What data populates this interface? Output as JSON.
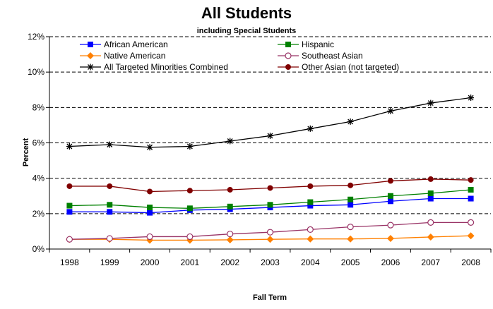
{
  "chart_data": {
    "type": "line",
    "title": "All Students",
    "subtitle": "including Special Students",
    "xlabel": "Fall Term",
    "ylabel": "Percent",
    "x": [
      "1998",
      "1999",
      "2000",
      "2001",
      "2002",
      "2003",
      "2004",
      "2005",
      "2006",
      "2007",
      "2008"
    ],
    "ylim": [
      0,
      12
    ],
    "yticks": [
      "0%",
      "2%",
      "4%",
      "6%",
      "8%",
      "10%",
      "12%"
    ],
    "grid": "horizontal dashed",
    "legend_position": "top",
    "series": [
      {
        "name": "African American",
        "color": "#0000ff",
        "marker": "square-filled",
        "values": [
          2.1,
          2.1,
          2.05,
          2.2,
          2.25,
          2.35,
          2.45,
          2.5,
          2.7,
          2.85,
          2.85
        ]
      },
      {
        "name": "Hispanic",
        "color": "#008000",
        "marker": "square-filled",
        "values": [
          2.45,
          2.5,
          2.35,
          2.3,
          2.4,
          2.5,
          2.65,
          2.8,
          3.0,
          3.15,
          3.35
        ]
      },
      {
        "name": "Native American",
        "color": "#ff8000",
        "marker": "diamond-filled",
        "values": [
          0.55,
          0.55,
          0.5,
          0.5,
          0.52,
          0.55,
          0.57,
          0.57,
          0.6,
          0.68,
          0.75
        ]
      },
      {
        "name": "Southeast Asian",
        "color": "#993366",
        "marker": "circle-open",
        "values": [
          0.55,
          0.6,
          0.7,
          0.7,
          0.85,
          0.95,
          1.1,
          1.25,
          1.35,
          1.5,
          1.5
        ]
      },
      {
        "name": "All Targeted Minorities Combined",
        "color": "#000000",
        "marker": "star",
        "values": [
          5.8,
          5.9,
          5.75,
          5.8,
          6.1,
          6.4,
          6.8,
          7.2,
          7.8,
          8.25,
          8.55
        ]
      },
      {
        "name": "Other Asian (not targeted)",
        "color": "#800000",
        "marker": "circle-filled",
        "values": [
          3.55,
          3.55,
          3.25,
          3.3,
          3.35,
          3.45,
          3.55,
          3.6,
          3.85,
          3.95,
          3.9
        ]
      }
    ]
  }
}
